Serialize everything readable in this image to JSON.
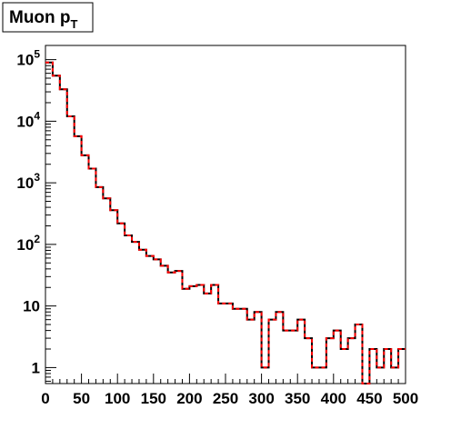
{
  "chart_data": {
    "type": "histogram",
    "title": "Muon p",
    "title_subscript": "T",
    "xlim": [
      0,
      500
    ],
    "ylim": [
      0.55,
      170000
    ],
    "yscale": "log",
    "bin_width": 10,
    "x_ticks": [
      "0",
      "50",
      "100",
      "150",
      "200",
      "250",
      "300",
      "350",
      "400",
      "450",
      "500"
    ],
    "y_ticks": [
      {
        "value": 1,
        "base": "1",
        "exp": ""
      },
      {
        "value": 10,
        "base": "10",
        "exp": ""
      },
      {
        "value": 100,
        "base": "10",
        "exp": "2"
      },
      {
        "value": 1000,
        "base": "10",
        "exp": "3"
      },
      {
        "value": 10000,
        "base": "10",
        "exp": "4"
      },
      {
        "value": 100000,
        "base": "10",
        "exp": "5"
      }
    ],
    "series": [
      {
        "style": "solid",
        "color": "#000000",
        "values": [
          90000,
          55000,
          33000,
          12000,
          5700,
          2800,
          1700,
          850,
          560,
          360,
          220,
          140,
          110,
          82,
          65,
          57,
          45,
          35,
          37,
          19,
          21,
          22,
          16,
          22,
          11,
          11,
          9,
          9,
          6,
          8,
          1,
          6,
          8,
          4,
          4,
          6,
          3,
          1,
          1,
          3,
          4,
          2,
          3,
          5,
          0,
          2,
          1,
          2,
          1,
          2
        ]
      },
      {
        "style": "dashed",
        "color": "#ff0000",
        "values": [
          90000,
          55000,
          33000,
          12000,
          5700,
          2800,
          1700,
          850,
          560,
          360,
          220,
          140,
          110,
          82,
          65,
          57,
          45,
          35,
          37,
          19,
          21,
          22,
          16,
          22,
          11,
          11,
          9,
          9,
          6,
          8,
          1,
          6,
          8,
          4,
          4,
          6,
          3,
          1,
          1,
          3,
          4,
          2,
          3,
          5,
          0,
          2,
          1,
          2,
          1,
          2
        ]
      }
    ]
  }
}
